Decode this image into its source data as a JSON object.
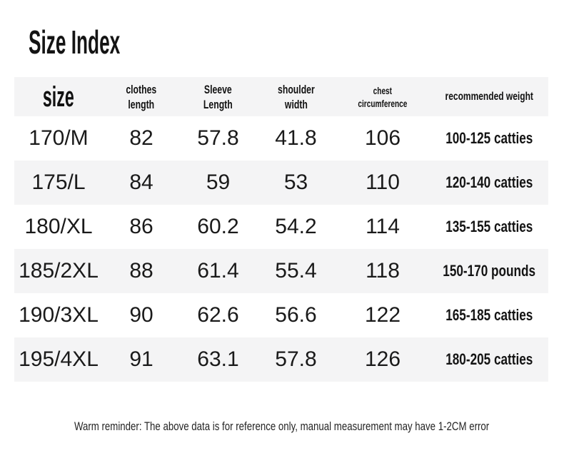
{
  "title": "Size Index",
  "footer": "Warm reminder: The above data is for reference only, manual measurement may have 1-2CM error",
  "colors": {
    "background": "#ffffff",
    "stripe_gray": "#f4f4f5",
    "text_dark": "#161616"
  },
  "chart_data": {
    "type": "table",
    "title": "Size Index",
    "columns": [
      {
        "id": "size",
        "label": "size"
      },
      {
        "id": "clothes-length",
        "l1": "clothes",
        "l2": "length"
      },
      {
        "id": "sleeve-length",
        "l1": "Sleeve",
        "l2": "Length"
      },
      {
        "id": "shoulder-width",
        "l1": "shoulder",
        "l2": "width"
      },
      {
        "id": "chest-circumference",
        "l1": "chest",
        "l2": "circumference"
      },
      {
        "id": "recommended-weight",
        "label": "recommended weight"
      }
    ],
    "rows": [
      {
        "size": "170/M",
        "clothes_length": "82",
        "sleeve_length": "57.8",
        "shoulder_width": "41.8",
        "chest": "106",
        "weight": "100-125 catties"
      },
      {
        "size": "175/L",
        "clothes_length": "84",
        "sleeve_length": "59",
        "shoulder_width": "53",
        "chest": "110",
        "weight": "120-140 catties"
      },
      {
        "size": "180/XL",
        "clothes_length": "86",
        "sleeve_length": "60.2",
        "shoulder_width": "54.2",
        "chest": "114",
        "weight": "135-155 catties"
      },
      {
        "size": "185/2XL",
        "clothes_length": "88",
        "sleeve_length": "61.4",
        "shoulder_width": "55.4",
        "chest": "118",
        "weight": "150-170 pounds"
      },
      {
        "size": "190/3XL",
        "clothes_length": "90",
        "sleeve_length": "62.6",
        "shoulder_width": "56.6",
        "chest": "122",
        "weight": "165-185 catties"
      },
      {
        "size": "195/4XL",
        "clothes_length": "91",
        "sleeve_length": "63.1",
        "shoulder_width": "57.8",
        "chest": "126",
        "weight": "180-205 catties"
      }
    ]
  }
}
